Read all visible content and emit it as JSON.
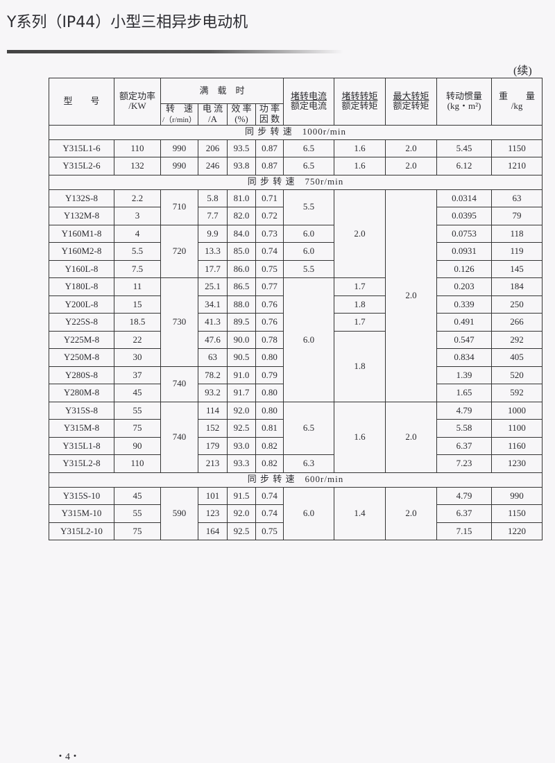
{
  "header": {
    "title": "Y系列（IP44）小型三相异步电动机",
    "continued": "(续)"
  },
  "table": {
    "headers": {
      "model": "型　　号",
      "power": [
        "额定功率",
        "/KW"
      ],
      "full_load": "满　载　时",
      "speed": [
        "转　速",
        "/（r/min）"
      ],
      "current": [
        "电 流",
        "/A"
      ],
      "efficiency": [
        "效 率",
        "(%)"
      ],
      "power_factor": [
        "功 率",
        "因 数"
      ],
      "locked_current": [
        "堵转电流",
        "额定电流"
      ],
      "locked_torque": [
        "堵转转矩",
        "额定转矩"
      ],
      "max_torque": [
        "最大转矩",
        "额定转矩"
      ],
      "inertia": [
        "转动惯量",
        "(kg・m²)"
      ],
      "weight": [
        "重　　量",
        "/kg"
      ]
    },
    "groups": [
      {
        "label": "同 步 转 速　1000r/min",
        "rows": [
          {
            "model": "Y315L1-6",
            "power": "110",
            "current": "206",
            "eff": "93.5",
            "pf": "0.87",
            "inertia": "5.45",
            "weight": "1150"
          },
          {
            "model": "Y315L2-6",
            "power": "132",
            "current": "246",
            "eff": "93.8",
            "pf": "0.87",
            "inertia": "6.12",
            "weight": "1210"
          }
        ],
        "speed_spans": [
          {
            "v": "990",
            "n": 1
          },
          {
            "v": "990",
            "n": 1
          }
        ],
        "locked_current_spans": [
          {
            "v": "6.5",
            "n": 1
          },
          {
            "v": "6.5",
            "n": 1
          }
        ],
        "locked_torque_spans": [
          {
            "v": "1.6",
            "n": 1
          },
          {
            "v": "1.6",
            "n": 1
          }
        ],
        "max_torque_spans": [
          {
            "v": "2.0",
            "n": 1
          },
          {
            "v": "2.0",
            "n": 1
          }
        ]
      },
      {
        "label": "同 步 转 速　750r/min",
        "rows": [
          {
            "model": "Y132S-8",
            "power": "2.2",
            "current": "5.8",
            "eff": "81.0",
            "pf": "0.71",
            "inertia": "0.0314",
            "weight": "63"
          },
          {
            "model": "Y132M-8",
            "power": "3",
            "current": "7.7",
            "eff": "82.0",
            "pf": "0.72",
            "inertia": "0.0395",
            "weight": "79"
          },
          {
            "model": "Y160M1-8",
            "power": "4",
            "current": "9.9",
            "eff": "84.0",
            "pf": "0.73",
            "inertia": "0.0753",
            "weight": "118"
          },
          {
            "model": "Y160M2-8",
            "power": "5.5",
            "current": "13.3",
            "eff": "85.0",
            "pf": "0.74",
            "inertia": "0.0931",
            "weight": "119"
          },
          {
            "model": "Y160L-8",
            "power": "7.5",
            "current": "17.7",
            "eff": "86.0",
            "pf": "0.75",
            "inertia": "0.126",
            "weight": "145"
          },
          {
            "model": "Y180L-8",
            "power": "11",
            "current": "25.1",
            "eff": "86.5",
            "pf": "0.77",
            "inertia": "0.203",
            "weight": "184"
          },
          {
            "model": "Y200L-8",
            "power": "15",
            "current": "34.1",
            "eff": "88.0",
            "pf": "0.76",
            "inertia": "0.339",
            "weight": "250"
          },
          {
            "model": "Y225S-8",
            "power": "18.5",
            "current": "41.3",
            "eff": "89.5",
            "pf": "0.76",
            "inertia": "0.491",
            "weight": "266"
          },
          {
            "model": "Y225M-8",
            "power": "22",
            "current": "47.6",
            "eff": "90.0",
            "pf": "0.78",
            "inertia": "0.547",
            "weight": "292"
          },
          {
            "model": "Y250M-8",
            "power": "30",
            "current": "63",
            "eff": "90.5",
            "pf": "0.80",
            "inertia": "0.834",
            "weight": "405"
          },
          {
            "model": "Y280S-8",
            "power": "37",
            "current": "78.2",
            "eff": "91.0",
            "pf": "0.79",
            "inertia": "1.39",
            "weight": "520"
          },
          {
            "model": "Y280M-8",
            "power": "45",
            "current": "93.2",
            "eff": "91.7",
            "pf": "0.80",
            "inertia": "1.65",
            "weight": "592"
          },
          {
            "model": "Y315S-8",
            "power": "55",
            "current": "114",
            "eff": "92.0",
            "pf": "0.80",
            "inertia": "4.79",
            "weight": "1000"
          },
          {
            "model": "Y315M-8",
            "power": "75",
            "current": "152",
            "eff": "92.5",
            "pf": "0.81",
            "inertia": "5.58",
            "weight": "1100"
          },
          {
            "model": "Y315L1-8",
            "power": "90",
            "current": "179",
            "eff": "93.0",
            "pf": "0.82",
            "inertia": "6.37",
            "weight": "1160"
          },
          {
            "model": "Y315L2-8",
            "power": "110",
            "current": "213",
            "eff": "93.3",
            "pf": "0.82",
            "inertia": "7.23",
            "weight": "1230"
          }
        ],
        "speed_spans": [
          {
            "v": "710",
            "n": 2
          },
          {
            "v": "720",
            "n": 3
          },
          {
            "v": "730",
            "n": 5
          },
          {
            "v": "740",
            "n": 2
          },
          {
            "v": "740",
            "n": 4
          }
        ],
        "locked_current_spans": [
          {
            "v": "5.5",
            "n": 2
          },
          {
            "v": "6.0",
            "n": 1
          },
          {
            "v": "6.0",
            "n": 1
          },
          {
            "v": "5.5",
            "n": 1
          },
          {
            "v": "6.0",
            "n": 7
          },
          {
            "v": "6.5",
            "n": 3
          },
          {
            "v": "6.3",
            "n": 1
          }
        ],
        "locked_torque_spans": [
          {
            "v": "2.0",
            "n": 5
          },
          {
            "v": "1.7",
            "n": 1
          },
          {
            "v": "1.8",
            "n": 1
          },
          {
            "v": "1.7",
            "n": 1
          },
          {
            "v": "1.8",
            "n": 4
          },
          {
            "v": "1.6",
            "n": 4
          }
        ],
        "max_torque_spans": [
          {
            "v": "2.0",
            "n": 12
          },
          {
            "v": "2.0",
            "n": 4
          }
        ]
      },
      {
        "label": "同 步 转 速　600r/min",
        "rows": [
          {
            "model": "Y315S-10",
            "power": "45",
            "current": "101",
            "eff": "91.5",
            "pf": "0.74",
            "inertia": "4.79",
            "weight": "990"
          },
          {
            "model": "Y315M-10",
            "power": "55",
            "current": "123",
            "eff": "92.0",
            "pf": "0.74",
            "inertia": "6.37",
            "weight": "1150"
          },
          {
            "model": "Y315L2-10",
            "power": "75",
            "current": "164",
            "eff": "92.5",
            "pf": "0.75",
            "inertia": "7.15",
            "weight": "1220"
          }
        ],
        "speed_spans": [
          {
            "v": "590",
            "n": 3
          }
        ],
        "locked_current_spans": [
          {
            "v": "6.0",
            "n": 3
          }
        ],
        "locked_torque_spans": [
          {
            "v": "1.4",
            "n": 3
          }
        ],
        "max_torque_spans": [
          {
            "v": "2.0",
            "n": 3
          }
        ]
      }
    ]
  },
  "footer": {
    "page": "・4・"
  }
}
